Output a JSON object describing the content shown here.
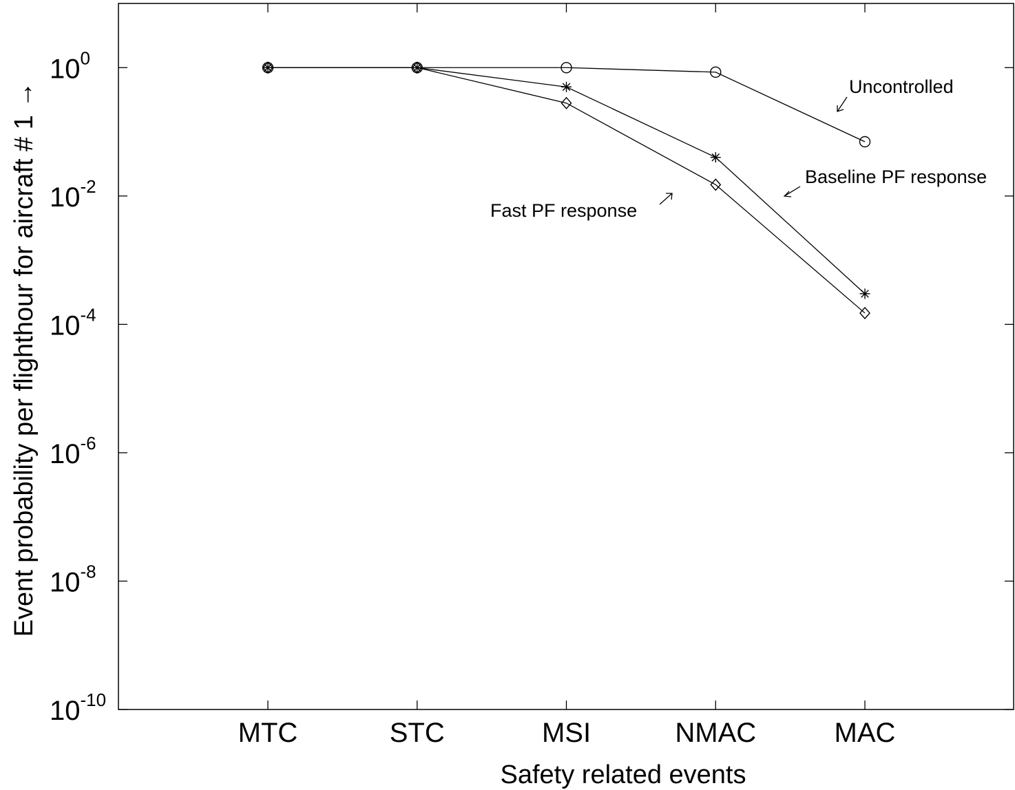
{
  "chart_data": {
    "type": "line",
    "xlabel": "Safety related events",
    "ylabel": "Event probability per flighthour for aircraft # 1 →",
    "categories": [
      "MTC",
      "STC",
      "MSI",
      "NMAC",
      "MAC"
    ],
    "yscale": "log",
    "ylim": [
      1e-10,
      10
    ],
    "yticks": [
      {
        "base": "10",
        "exp": "0",
        "value": 1
      },
      {
        "base": "10",
        "exp": "-2",
        "value": 0.01
      },
      {
        "base": "10",
        "exp": "-4",
        "value": 0.0001
      },
      {
        "base": "10",
        "exp": "-6",
        "value": 1e-06
      },
      {
        "base": "10",
        "exp": "-8",
        "value": 1e-08
      },
      {
        "base": "10",
        "exp": "-10",
        "value": 1e-10
      }
    ],
    "grid": false,
    "series": [
      {
        "name": "Uncontrolled",
        "marker": "circle",
        "values": [
          1,
          1,
          1,
          0.85,
          0.07
        ]
      },
      {
        "name": "Baseline PF response",
        "marker": "asterisk",
        "values": [
          1,
          1,
          0.5,
          0.04,
          0.0003
        ]
      },
      {
        "name": "Fast PF response",
        "marker": "diamond",
        "values": [
          1,
          1,
          0.28,
          0.015,
          0.00015
        ]
      }
    ],
    "annotations": [
      {
        "text": "Uncontrolled",
        "series": "Uncontrolled"
      },
      {
        "text": "Baseline PF response",
        "series": "Baseline PF response"
      },
      {
        "text": "Fast PF response",
        "series": "Fast PF response"
      }
    ],
    "colors": {
      "line": "#000000",
      "background": "#ffffff"
    }
  }
}
